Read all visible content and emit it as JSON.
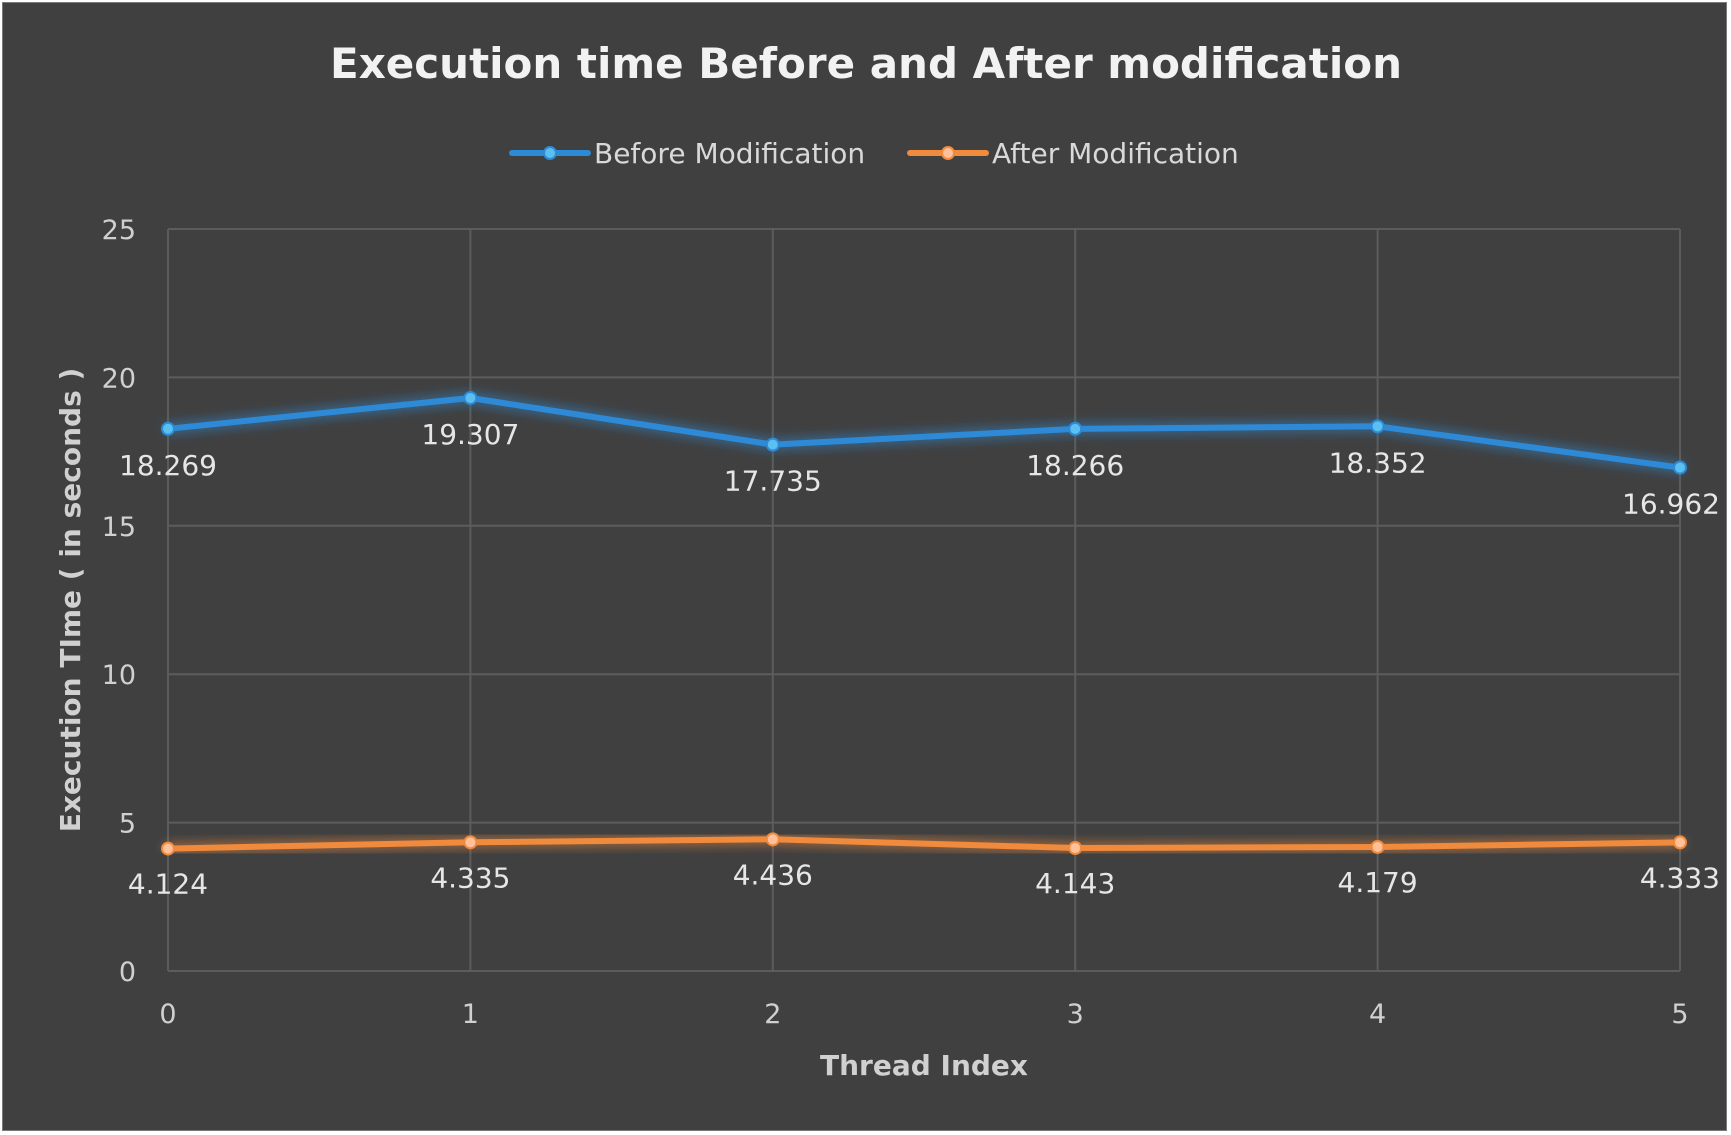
{
  "chart_data": {
    "type": "line",
    "title": "Execution time Before and After modification",
    "xlabel": "Thread Index",
    "ylabel": "Execution TIme ( in seconds )",
    "x": [
      0,
      1,
      2,
      3,
      4,
      5
    ],
    "ylim": [
      0,
      25
    ],
    "yticks": [
      0,
      5,
      10,
      15,
      20,
      25
    ],
    "grid": true,
    "legend_position": "top",
    "series": [
      {
        "name": "Before Modification",
        "color": "#2d8ad6",
        "values": [
          18.269,
          19.307,
          17.735,
          18.266,
          18.352,
          16.962
        ],
        "labels": [
          "18.269",
          "19.307",
          "17.735",
          "18.266",
          "18.352",
          "16.962"
        ]
      },
      {
        "name": "After Modification",
        "color": "#f08a3c",
        "values": [
          4.124,
          4.335,
          4.436,
          4.143,
          4.179,
          4.333
        ],
        "labels": [
          "4.124",
          "4.335",
          "4.436",
          "4.143",
          "4.179",
          "4.333"
        ]
      }
    ]
  }
}
